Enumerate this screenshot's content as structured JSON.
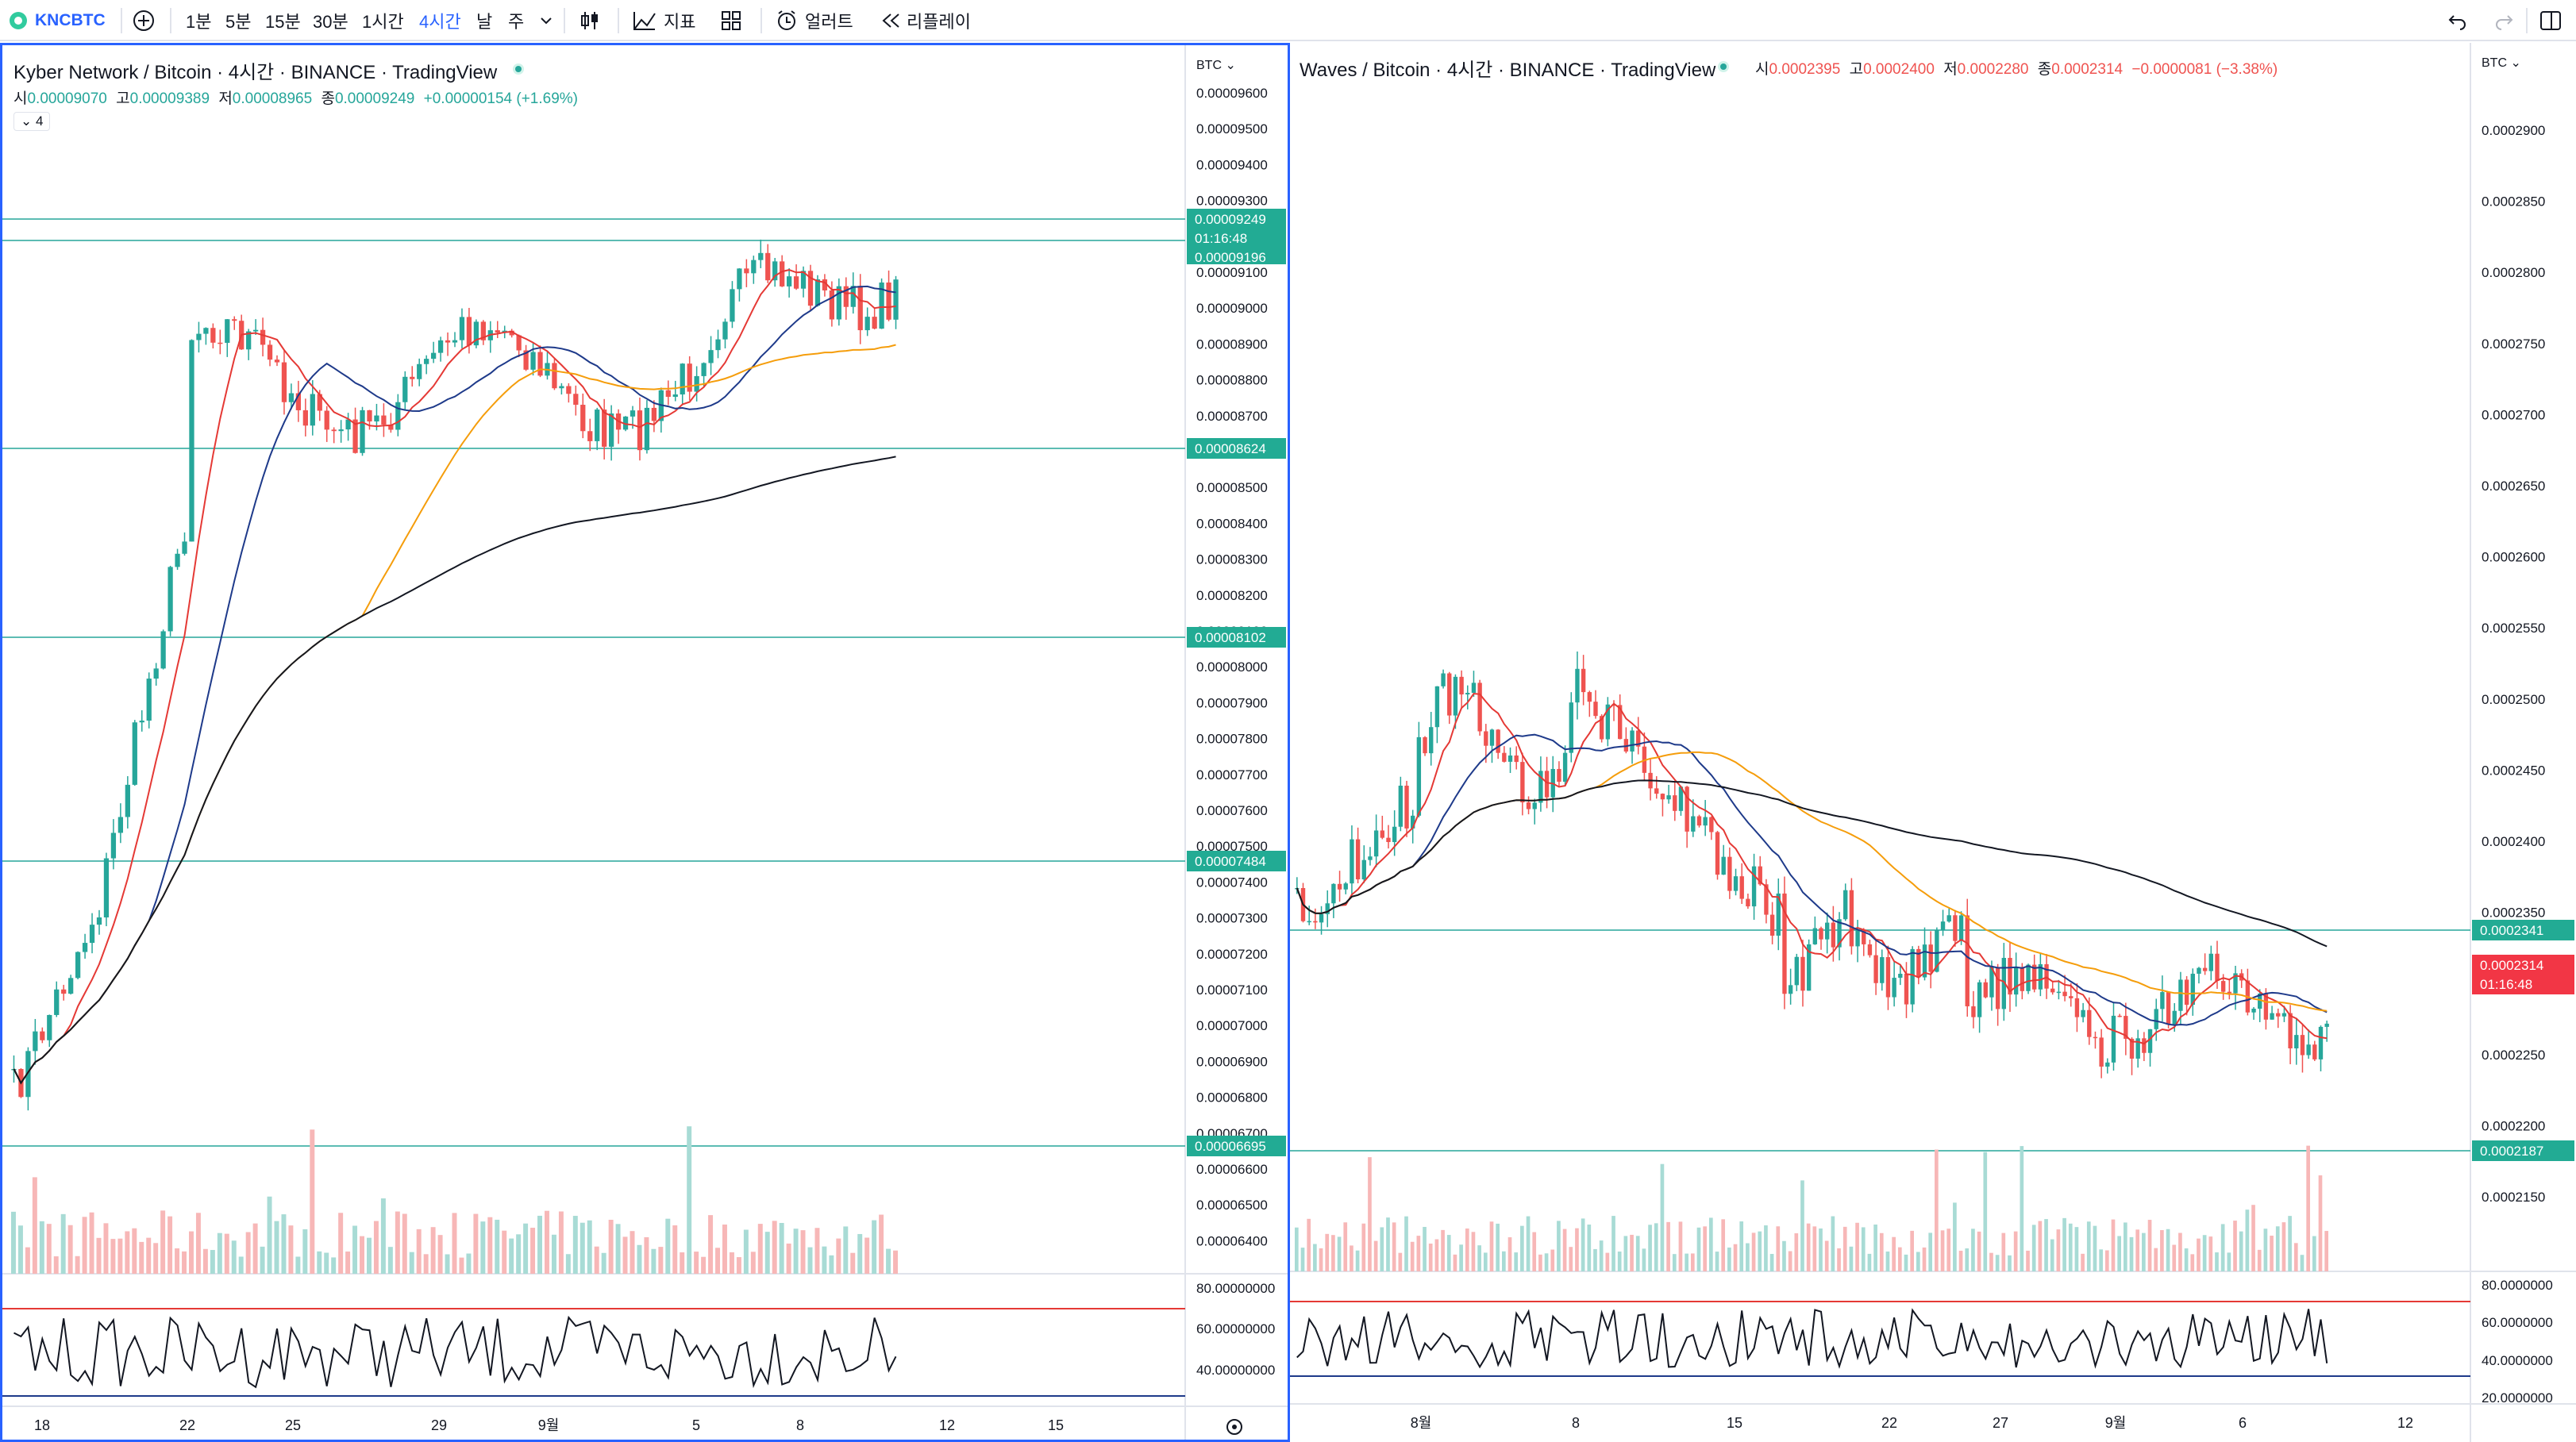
{
  "toolbar": {
    "symbol": "KNCBTC",
    "intervals": [
      "1분",
      "5분",
      "15분",
      "30분",
      "1시간",
      "4시간",
      "날",
      "주"
    ],
    "active_interval": "4시간",
    "indicators_label": "지표",
    "alert_label": "얼러트",
    "replay_label": "리플레이"
  },
  "colors": {
    "up": "#26a69a",
    "down": "#ef5350",
    "accent": "#2962ff",
    "ma_red": "#e53935",
    "ma_blue": "#1e3a8a",
    "ma_orange": "#f59d0b",
    "ma_black": "#131722",
    "hline": "#26a69a"
  },
  "left": {
    "title": "Kyber Network / Bitcoin · 4시간 · BINANCE · TradingView",
    "ohlc": {
      "o_label": "시",
      "o": "0.00009070",
      "h_label": "고",
      "h": "0.00009389",
      "l_label": "저",
      "l": "0.00008965",
      "c_label": "종",
      "c": "0.00009249",
      "chg": "+0.00000154 (+1.69%)"
    },
    "collapse_count": "4",
    "currency": "BTC",
    "y_ticks": [
      "0.00009600",
      "0.00009500",
      "0.00009400",
      "0.00009300",
      "0.00009200",
      "0.00009100",
      "0.00009000",
      "0.00008900",
      "0.00008800",
      "0.00008700",
      "0.00008600",
      "0.00008500",
      "0.00008400",
      "0.00008300",
      "0.00008200",
      "0.00008100",
      "0.00008000",
      "0.00007900",
      "0.00007800",
      "0.00007700",
      "0.00007600",
      "0.00007500",
      "0.00007400",
      "0.00007300",
      "0.00007200",
      "0.00007100",
      "0.00007000",
      "0.00006900",
      "0.00006800",
      "0.00006700",
      "0.00006600",
      "0.00006500",
      "0.00006400"
    ],
    "price_badges": [
      "0.00009249",
      "0.00008624",
      "0.00008102",
      "0.00007484",
      "0.00006695"
    ],
    "price_badge_sub": [
      "01:16:48",
      "0.00009196"
    ],
    "x_ticks": [
      "18",
      "22",
      "25",
      "29",
      "9월",
      "5",
      "8",
      "12",
      "15"
    ],
    "osc_ticks": [
      "80.00000000",
      "60.00000000",
      "40.00000000"
    ]
  },
  "right": {
    "title": "Waves / Bitcoin · 4시간 · BINANCE · TradingView",
    "ohlc": {
      "o_label": "시",
      "o": "0.0002395",
      "h_label": "고",
      "h": "0.0002400",
      "l_label": "저",
      "l": "0.0002280",
      "c_label": "종",
      "c": "0.0002314",
      "chg": "−0.0000081 (−3.38%)"
    },
    "currency": "BTC",
    "y_ticks": [
      "0.0002900",
      "0.0002850",
      "0.0002800",
      "0.0002750",
      "0.0002700",
      "0.0002650",
      "0.0002600",
      "0.0002550",
      "0.0002500",
      "0.0002450",
      "0.0002400",
      "0.0002350",
      "0.0002250",
      "0.0002200",
      "0.0002150"
    ],
    "price_badges": [
      "0.0002341",
      "0.0002314",
      "0.0002187"
    ],
    "price_badge_sub": [
      "01:16:48"
    ],
    "x_ticks": [
      "8월",
      "8",
      "15",
      "22",
      "27",
      "9월",
      "6",
      "12"
    ],
    "osc_ticks": [
      "80.0000000",
      "60.0000000",
      "40.0000000",
      "20.0000000"
    ]
  }
}
